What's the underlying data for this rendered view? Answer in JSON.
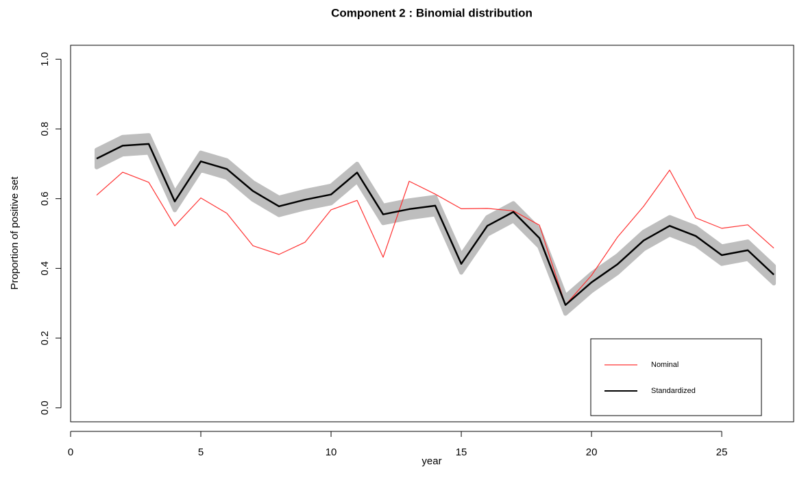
{
  "chart_data": {
    "type": "line",
    "title": "Component 2 : Binomial distribution",
    "x_label": "year",
    "y_label": "Proportion of positive set",
    "x": [
      1,
      2,
      3,
      4,
      5,
      6,
      7,
      8,
      9,
      10,
      11,
      12,
      13,
      14,
      15,
      16,
      17,
      18,
      19,
      20,
      21,
      22,
      23,
      24,
      25,
      26,
      27
    ],
    "series": [
      {
        "name": "Nominal",
        "color": "#ff3030",
        "values": [
          0.61,
          0.676,
          0.647,
          0.522,
          0.602,
          0.558,
          0.465,
          0.44,
          0.475,
          0.568,
          0.595,
          0.432,
          0.65,
          0.613,
          0.571,
          0.572,
          0.565,
          0.524,
          0.295,
          0.38,
          0.49,
          0.578,
          0.682,
          0.545,
          0.515,
          0.525,
          0.458
        ]
      },
      {
        "name": "Standardized",
        "color": "#000000",
        "band_color": "#bebebe",
        "values": [
          0.715,
          0.752,
          0.757,
          0.592,
          0.707,
          0.685,
          0.622,
          0.578,
          0.597,
          0.612,
          0.675,
          0.555,
          0.57,
          0.58,
          0.413,
          0.522,
          0.562,
          0.487,
          0.295,
          0.36,
          0.412,
          0.48,
          0.522,
          0.493,
          0.438,
          0.452,
          0.382
        ],
        "lower": [
          0.69,
          0.727,
          0.732,
          0.567,
          0.682,
          0.66,
          0.597,
          0.553,
          0.572,
          0.587,
          0.65,
          0.53,
          0.545,
          0.555,
          0.388,
          0.497,
          0.537,
          0.462,
          0.27,
          0.335,
          0.387,
          0.455,
          0.497,
          0.468,
          0.413,
          0.427,
          0.357
        ],
        "upper": [
          0.74,
          0.777,
          0.782,
          0.617,
          0.732,
          0.71,
          0.647,
          0.603,
          0.622,
          0.637,
          0.7,
          0.58,
          0.595,
          0.605,
          0.438,
          0.547,
          0.587,
          0.512,
          0.32,
          0.385,
          0.437,
          0.505,
          0.547,
          0.518,
          0.463,
          0.477,
          0.407
        ]
      }
    ],
    "xlim": [
      0,
      27.76
    ],
    "xticks": [
      0,
      5,
      10,
      15,
      20,
      25
    ],
    "ylim": [
      -0.04,
      1.04
    ],
    "yticks": [
      {
        "value": 0,
        "label": "0.0"
      },
      0.2,
      0.4,
      0.6,
      0.8,
      {
        "value": 1,
        "label": "1.0"
      }
    ],
    "grid": false,
    "legend": "bottomright"
  }
}
